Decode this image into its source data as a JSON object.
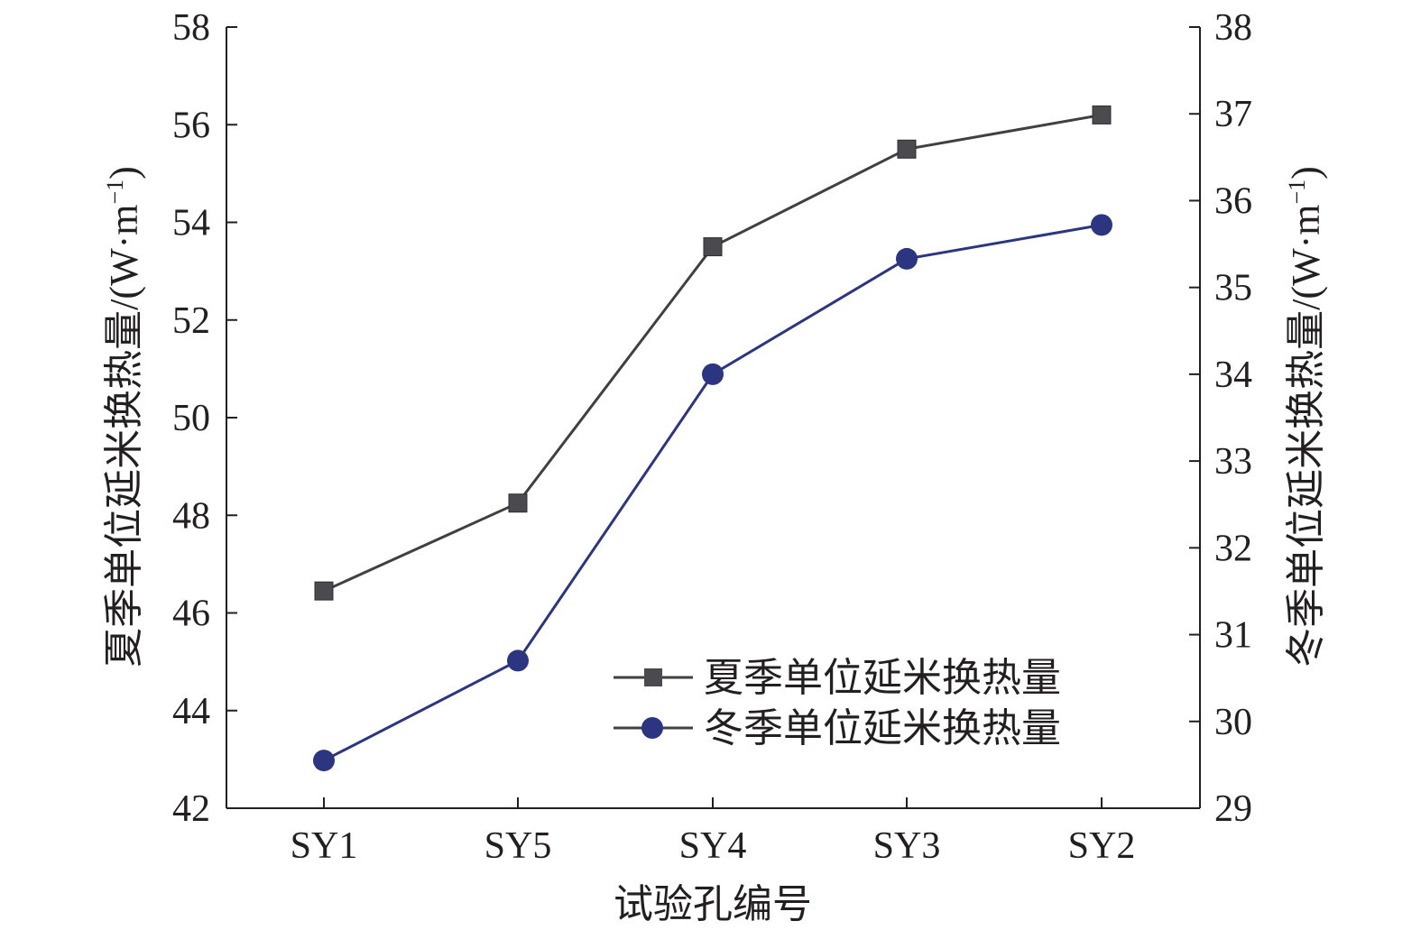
{
  "colors": {
    "axis": "#231f20",
    "summer": "#404040",
    "summer_marker": "#4a4a4f",
    "winter": "#2b3580"
  },
  "chart_data": {
    "type": "line",
    "categories": [
      "SY1",
      "SY5",
      "SY4",
      "SY3",
      "SY2"
    ],
    "xlabel": "试验孔编号",
    "ylabel_left": {
      "text": "夏季单位延米换热量/(W·m",
      "sup": "−1",
      "close": ")"
    },
    "ylabel_right": {
      "text": "冬季单位延米换热量/(W·m",
      "sup": "−1",
      "close": ")"
    },
    "ylim_left": [
      42,
      58
    ],
    "yticks_left": [
      42,
      44,
      46,
      48,
      50,
      52,
      54,
      56,
      58
    ],
    "ylim_right": [
      29,
      38
    ],
    "yticks_right": [
      29,
      30,
      31,
      32,
      33,
      34,
      35,
      36,
      37,
      38
    ],
    "grid": false,
    "legend_position": "bottom-right",
    "series": [
      {
        "name": "夏季单位延米换热量",
        "axis": "left",
        "marker": "square",
        "values": [
          46.45,
          48.25,
          53.5,
          55.5,
          56.2
        ]
      },
      {
        "name": "冬季单位延米换热量",
        "axis": "right",
        "marker": "circle",
        "values": [
          29.55,
          30.7,
          34.0,
          35.33,
          35.72
        ]
      }
    ]
  }
}
